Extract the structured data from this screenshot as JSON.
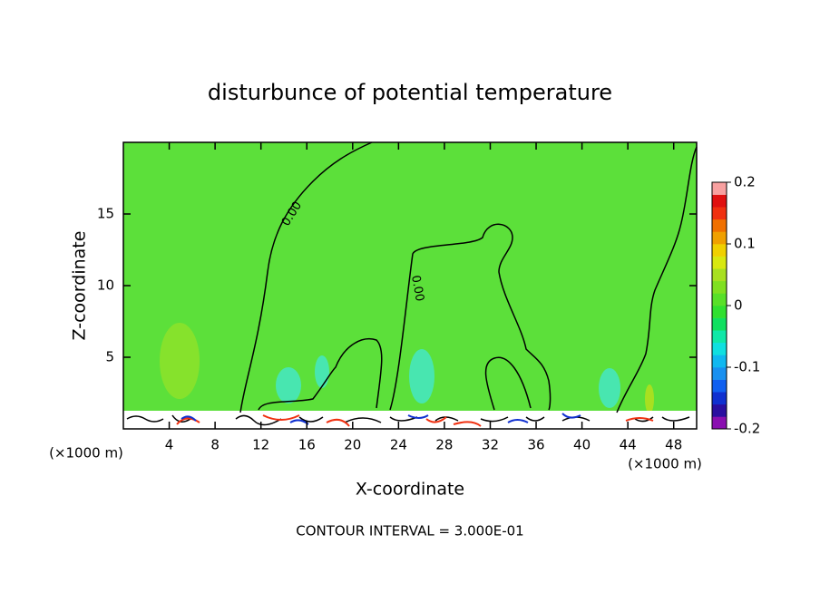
{
  "chart_data": {
    "type": "contour",
    "title": "disturbunce of potential temperature",
    "x_label": "X-coordinate",
    "y_label": "Z-coordinate",
    "x_unit_label": "(×1000 m)",
    "xlim": [
      0,
      50
    ],
    "xticks": [
      4,
      8,
      12,
      16,
      20,
      24,
      28,
      32,
      36,
      40,
      44,
      48
    ],
    "ylim": [
      0,
      20
    ],
    "yticks": [
      5,
      10,
      15
    ],
    "contour_labels": [
      "0.00",
      "0.00"
    ],
    "footer": "CONTOUR INTERVAL = 3.000E-01",
    "colorbar": {
      "lim": [
        -0.2,
        0.2
      ],
      "ticks": [
        -0.2,
        -0.1,
        0,
        0.1,
        0.2
      ],
      "colors": [
        "#8a0fb0",
        "#2a0fa0",
        "#1030d0",
        "#1060f0",
        "#1890f0",
        "#10b8f0",
        "#10e0e0",
        "#10e8a8",
        "#10e060",
        "#30e030",
        "#58e028",
        "#80e020",
        "#a8e020",
        "#d8e810",
        "#f0d000",
        "#f0a000",
        "#f07000",
        "#f03010",
        "#e01010",
        "#f8a0a0"
      ]
    }
  }
}
